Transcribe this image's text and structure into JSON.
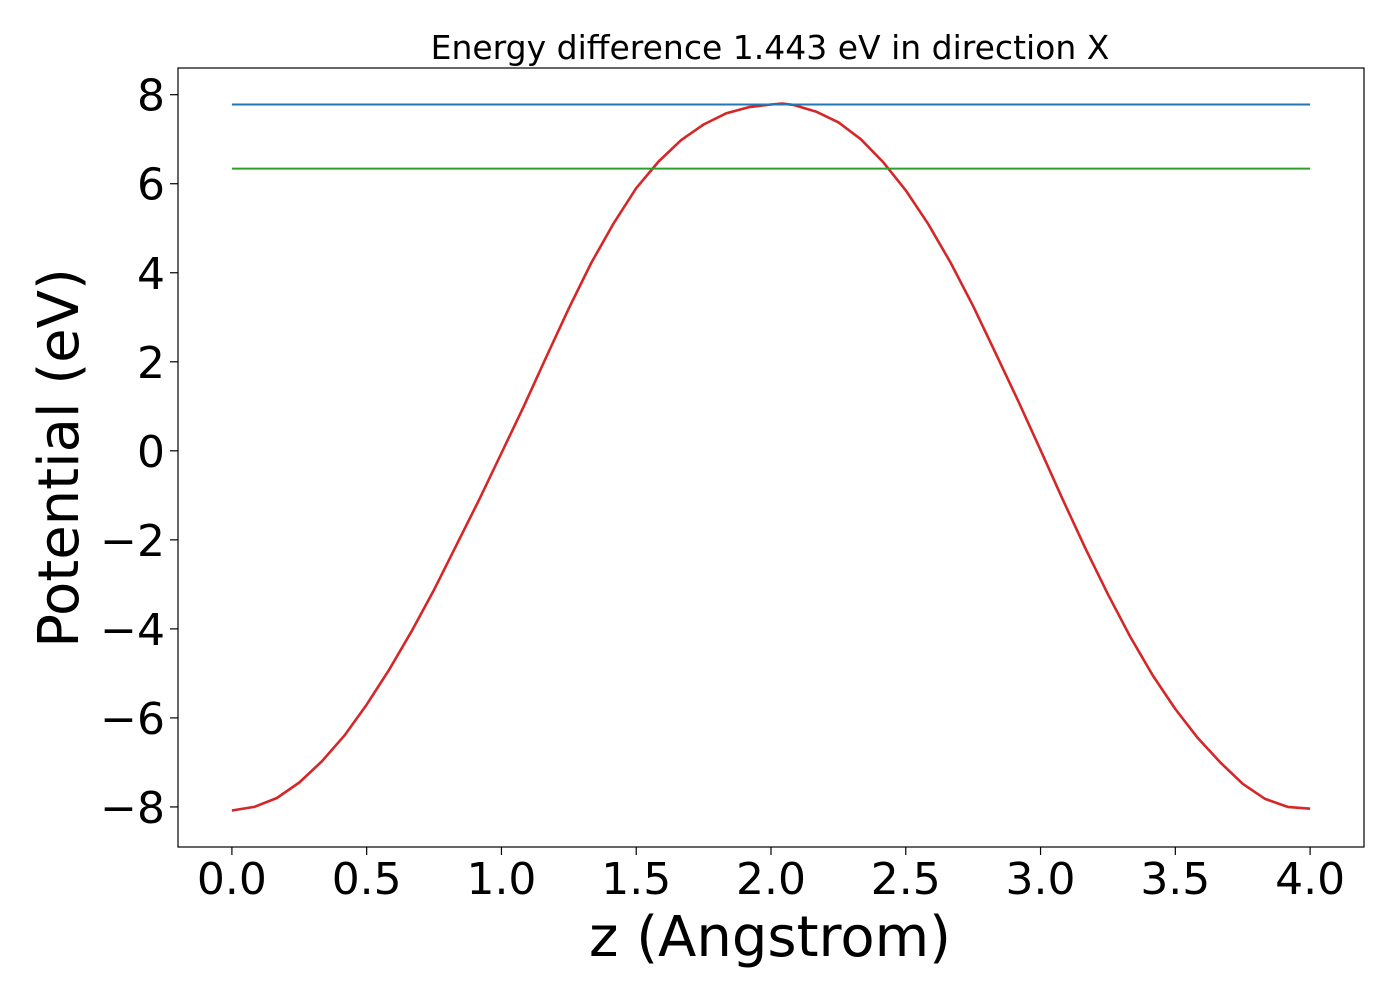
{
  "chart_data": {
    "type": "line",
    "title": "Energy difference 1.443 eV in direction X",
    "xlabel": "z (Angstrom)",
    "ylabel": "Potential (eV)",
    "xlim": [
      -0.2,
      4.2
    ],
    "ylim": [
      -8.9,
      8.6
    ],
    "xticks": [
      0.0,
      0.5,
      1.0,
      1.5,
      2.0,
      2.5,
      3.0,
      3.5,
      4.0
    ],
    "xtick_labels": [
      "0.0",
      "0.5",
      "1.0",
      "1.5",
      "2.0",
      "2.5",
      "3.0",
      "3.5",
      "4.0"
    ],
    "yticks": [
      -8,
      -6,
      -4,
      -2,
      0,
      2,
      4,
      6,
      8
    ],
    "ytick_labels": [
      "−8",
      "−6",
      "−4",
      "−2",
      "0",
      "2",
      "4",
      "6",
      "8"
    ],
    "grid": false,
    "colors": {
      "potential": "#d62728",
      "max_line": "#1f77b4",
      "ref_line": "#2ca02c"
    },
    "series": [
      {
        "color": "#d62728",
        "x": [
          0.0,
          0.083,
          0.167,
          0.25,
          0.333,
          0.417,
          0.5,
          0.583,
          0.667,
          0.75,
          0.833,
          0.917,
          1.0,
          1.083,
          1.167,
          1.25,
          1.333,
          1.417,
          1.5,
          1.583,
          1.667,
          1.75,
          1.833,
          1.917,
          2.0,
          2.042,
          2.083,
          2.167,
          2.25,
          2.333,
          2.417,
          2.5,
          2.583,
          2.667,
          2.75,
          2.833,
          2.917,
          3.0,
          3.083,
          3.167,
          3.25,
          3.333,
          3.417,
          3.5,
          3.583,
          3.667,
          3.75,
          3.833,
          3.917,
          4.0
        ],
        "y": [
          -8.08,
          -8.0,
          -7.8,
          -7.45,
          -6.98,
          -6.4,
          -5.7,
          -4.92,
          -4.05,
          -3.12,
          -2.12,
          -1.1,
          -0.05,
          1.0,
          2.12,
          3.2,
          4.22,
          5.12,
          5.9,
          6.5,
          6.98,
          7.33,
          7.58,
          7.72,
          7.78,
          7.8,
          7.77,
          7.62,
          7.38,
          7.0,
          6.48,
          5.85,
          5.1,
          4.22,
          3.25,
          2.2,
          1.12,
          0.02,
          -1.1,
          -2.2,
          -3.22,
          -4.18,
          -5.05,
          -5.8,
          -6.45,
          -7.0,
          -7.48,
          -7.82,
          -8.0,
          -8.04
        ]
      },
      {
        "color": "#1f77b4",
        "x": [
          0.0,
          4.0
        ],
        "y": [
          7.78,
          7.78
        ]
      },
      {
        "color": "#2ca02c",
        "x": [
          0.0,
          4.0
        ],
        "y": [
          6.34,
          6.34
        ]
      }
    ]
  }
}
